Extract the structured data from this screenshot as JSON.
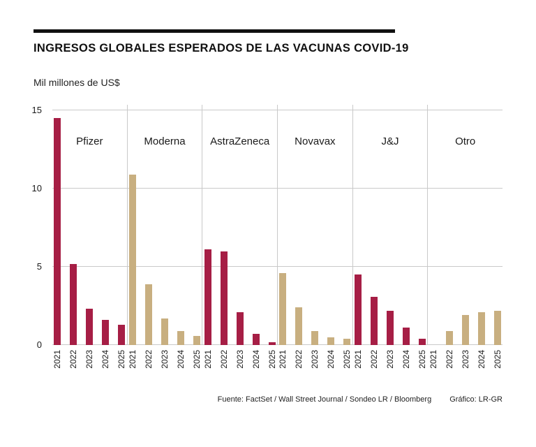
{
  "header": {
    "title": "INGRESOS GLOBALES ESPERADOS DE LAS VACUNAS COVID-19",
    "subtitle": "Mil millones de US$"
  },
  "footer": {
    "source": "Fuente: FactSet / Wall Street Journal / Sondeo LR / Bloomberg",
    "credit": "Gráfico: LR-GR"
  },
  "colors": {
    "crimson": "#a61e45",
    "tan": "#c8af80",
    "grid": "#c9c9c9",
    "rule": "#111111"
  },
  "chart_data": {
    "type": "bar",
    "title": "INGRESOS GLOBALES ESPERADOS DE LAS VACUNAS COVID-19",
    "ylabel": "Mil millones de US$",
    "categories": [
      "2021",
      "2022",
      "2023",
      "2024",
      "2025"
    ],
    "ylim": [
      0,
      15
    ],
    "yticks": [
      0,
      5,
      10,
      15
    ],
    "grid": "horizontal",
    "legend": "none",
    "series": [
      {
        "name": "Pfizer",
        "color": "crimson",
        "values": [
          14.5,
          5.2,
          2.3,
          1.6,
          1.3
        ]
      },
      {
        "name": "Moderna",
        "color": "tan",
        "values": [
          10.9,
          3.9,
          1.7,
          0.9,
          0.6
        ]
      },
      {
        "name": "AstraZeneca",
        "color": "crimson",
        "values": [
          6.1,
          6.0,
          2.1,
          0.7,
          0.2
        ]
      },
      {
        "name": "Novavax",
        "color": "tan",
        "values": [
          4.6,
          2.4,
          0.9,
          0.5,
          0.4
        ]
      },
      {
        "name": "J&J",
        "color": "crimson",
        "values": [
          4.5,
          3.1,
          2.2,
          1.1,
          0.4
        ]
      },
      {
        "name": "Otro",
        "color": "tan",
        "values": [
          0,
          0.9,
          1.9,
          2.1,
          2.2
        ]
      }
    ]
  }
}
